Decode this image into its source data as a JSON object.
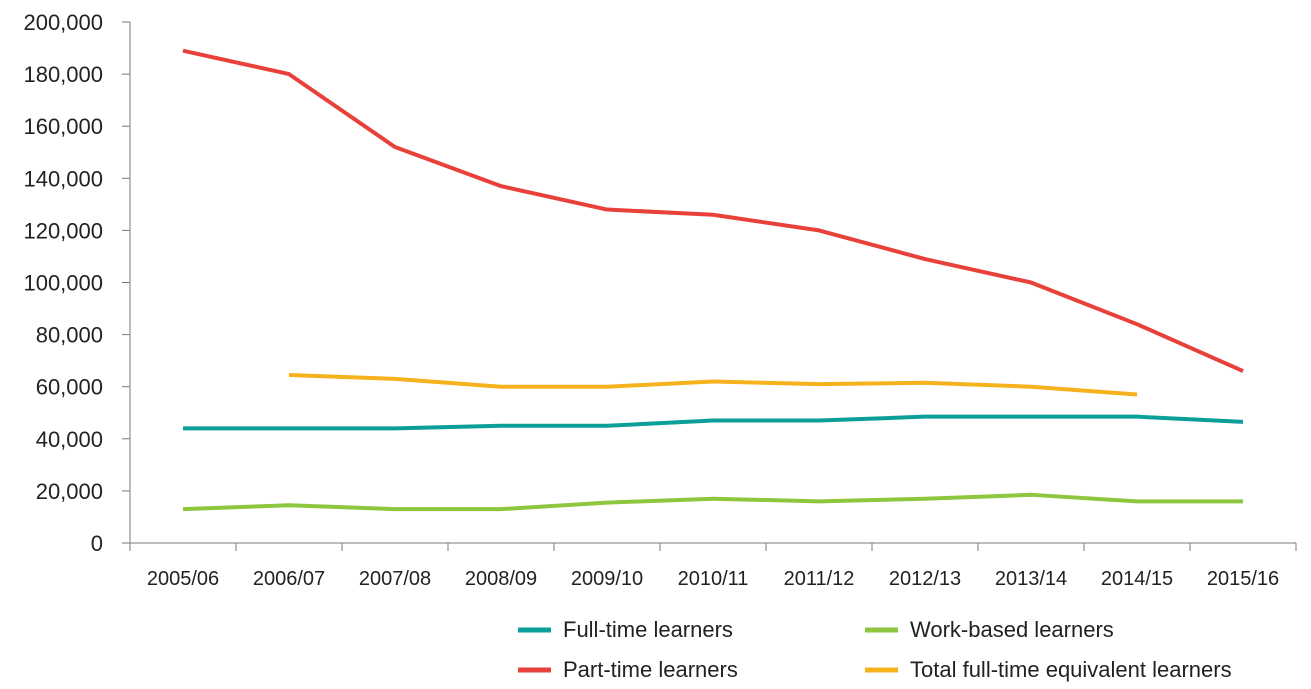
{
  "chart_data": {
    "type": "line",
    "title": "",
    "xlabel": "",
    "ylabel": "",
    "categories": [
      "2005/06",
      "2006/07",
      "2007/08",
      "2008/09",
      "2009/10",
      "2010/11",
      "2011/12",
      "2012/13",
      "2013/14",
      "2014/15",
      "2015/16"
    ],
    "ylim": [
      0,
      200000
    ],
    "yticks": [
      0,
      20000,
      40000,
      60000,
      80000,
      100000,
      120000,
      140000,
      160000,
      180000,
      200000
    ],
    "ytick_labels": [
      "0",
      "20,000",
      "40,000",
      "60,000",
      "80,000",
      "100,000",
      "120,000",
      "140,000",
      "160,000",
      "180,000",
      "200,000"
    ],
    "grid": false,
    "legend_position": "bottom-right",
    "series": [
      {
        "name": "Full-time learners",
        "color": "#0b9f9a",
        "values": [
          44000,
          44000,
          44000,
          45000,
          45000,
          47000,
          47000,
          48500,
          48500,
          48500,
          46500
        ]
      },
      {
        "name": "Part-time learners",
        "color": "#e8413a",
        "values": [
          189000,
          180000,
          152000,
          137000,
          128000,
          126000,
          120000,
          109000,
          100000,
          84000,
          66000
        ]
      },
      {
        "name": "Work-based learners",
        "color": "#8dc63f",
        "values": [
          13000,
          14500,
          13000,
          13000,
          15500,
          17000,
          16000,
          17000,
          18500,
          16000,
          16000
        ]
      },
      {
        "name": "Total full-time equivalent learners",
        "color": "#f5b21d",
        "values": [
          null,
          64500,
          63000,
          60000,
          60000,
          62000,
          61000,
          61500,
          60000,
          57000,
          null
        ]
      }
    ]
  }
}
